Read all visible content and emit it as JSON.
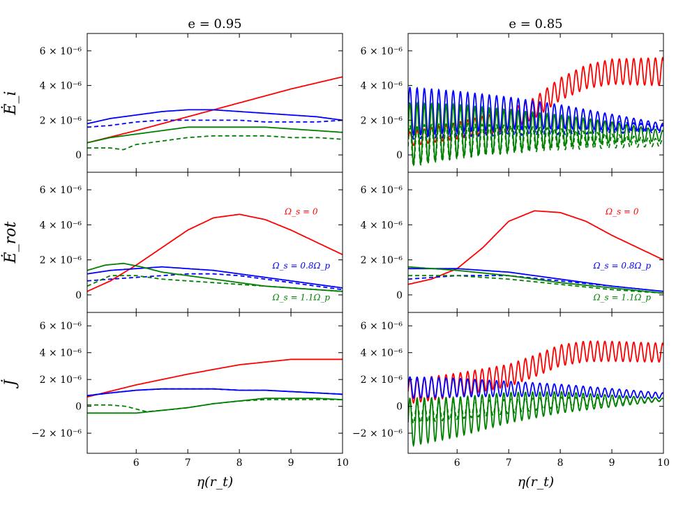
{
  "chart_data": {
    "type": "line",
    "columns": [
      {
        "title": "e = 0.95",
        "key": "e095"
      },
      {
        "title": "e = 0.85",
        "key": "e085"
      }
    ],
    "rows": [
      {
        "key": "Ei",
        "ylabel": "Ė_i",
        "ylim": [
          -1e-06,
          7e-06
        ],
        "yticks": [
          0,
          2e-06,
          4e-06,
          6e-06
        ]
      },
      {
        "key": "Erot",
        "ylabel": "Ė_rot",
        "ylim": [
          -1e-06,
          7e-06
        ],
        "yticks": [
          0,
          2e-06,
          4e-06,
          6e-06
        ]
      },
      {
        "key": "J",
        "ylabel": "J̇",
        "ylim": [
          -3.5e-06,
          7e-06
        ],
        "yticks": [
          -2e-06,
          0,
          2e-06,
          4e-06,
          6e-06
        ]
      }
    ],
    "ytick_labels": {
      "-0.000002": "−2 × 10⁻⁶",
      "0": "0",
      "0.000002": "2 × 10⁻⁶",
      "0.000004": "4 × 10⁻⁶",
      "0.000006": "6 × 10⁻⁶"
    },
    "xlim": [
      5.05,
      10
    ],
    "xticks": [
      6,
      7,
      8,
      9,
      10
    ],
    "xlabel": "η(r_t)",
    "series_styles": [
      {
        "key": "red",
        "label": "Ω_s = 0",
        "color": "#ff0000"
      },
      {
        "key": "blue",
        "label": "Ω_s = 0.8Ω_p",
        "color": "#0000ff"
      },
      {
        "key": "green",
        "label": "Ω_s = 1.1Ω_p",
        "color": "#008000"
      }
    ],
    "panels": {
      "Ei_e095": {
        "curves": [
          {
            "color": "red",
            "dashed": false,
            "x": [
              5.05,
              6,
              7,
              8,
              9,
              10
            ],
            "y": [
              7e-07,
              1.4e-06,
              2.2e-06,
              3e-06,
              3.8e-06,
              4.5e-06
            ]
          },
          {
            "color": "blue",
            "dashed": false,
            "x": [
              5.05,
              5.5,
              6,
              6.5,
              7,
              7.5,
              8,
              8.5,
              9,
              9.5,
              10
            ],
            "y": [
              1.8e-06,
              2.1e-06,
              2.3e-06,
              2.5e-06,
              2.6e-06,
              2.6e-06,
              2.5e-06,
              2.4e-06,
              2.3e-06,
              2.2e-06,
              2e-06
            ]
          },
          {
            "color": "blue",
            "dashed": true,
            "x": [
              5.05,
              5.5,
              6,
              6.5,
              7,
              7.5,
              8,
              8.5,
              9,
              9.5,
              10
            ],
            "y": [
              1.6e-06,
              1.7e-06,
              1.9e-06,
              2e-06,
              2e-06,
              2e-06,
              2e-06,
              1.9e-06,
              1.9e-06,
              1.9e-06,
              2e-06
            ]
          },
          {
            "color": "green",
            "dashed": false,
            "x": [
              5.05,
              5.5,
              6,
              6.5,
              7,
              7.5,
              8,
              8.5,
              9,
              9.5,
              10
            ],
            "y": [
              7e-07,
              1e-06,
              1.2e-06,
              1.4e-06,
              1.6e-06,
              1.6e-06,
              1.6e-06,
              1.6e-06,
              1.5e-06,
              1.4e-06,
              1.3e-06
            ]
          },
          {
            "color": "green",
            "dashed": true,
            "x": [
              5.05,
              5.5,
              5.75,
              6,
              6.5,
              7,
              7.5,
              8,
              8.5,
              9,
              9.5,
              10
            ],
            "y": [
              4e-07,
              4e-07,
              3e-07,
              6e-07,
              8e-07,
              1e-06,
              1.1e-06,
              1.1e-06,
              1.1e-06,
              1e-06,
              1e-06,
              9e-07
            ]
          }
        ]
      },
      "Ei_e085": {
        "curves": [
          {
            "color": "red",
            "dashed": false,
            "x": [
              5.05,
              6,
              7,
              7.5,
              8,
              8.5,
              9,
              10
            ],
            "y": [
              9e-07,
              1.4e-06,
              2e-06,
              2.7e-06,
              3.8e-06,
              4.5e-06,
              4.8e-06,
              4.8e-06
            ],
            "osc": {
              "period": 0.14,
              "amp_start": 4e-07,
              "amp_end": 8e-07
            }
          },
          {
            "color": "blue",
            "dashed": false,
            "x": [
              5.05,
              6,
              7,
              8,
              9,
              10
            ],
            "y": [
              2.5e-06,
              2.5e-06,
              2.4e-06,
              2.2e-06,
              1.9e-06,
              1.6e-06
            ],
            "osc": {
              "period": 0.14,
              "amp_start": 1.4e-06,
              "amp_end": 2e-07
            }
          },
          {
            "color": "blue",
            "dashed": true,
            "x": [
              5.05,
              6,
              7,
              8,
              9,
              10
            ],
            "y": [
              1.9e-06,
              1.9e-06,
              1.8e-06,
              1.7e-06,
              1.6e-06,
              1.5e-06
            ],
            "osc": {
              "period": 0.14,
              "amp_start": 1e-06,
              "amp_end": 2e-07
            }
          },
          {
            "color": "green",
            "dashed": false,
            "x": [
              5.05,
              6,
              7,
              8,
              9,
              10
            ],
            "y": [
              1.2e-06,
              1.4e-06,
              1.4e-06,
              1.4e-06,
              1.3e-06,
              1.1e-06
            ],
            "osc": {
              "period": 0.14,
              "amp_start": 1.8e-06,
              "amp_end": 3e-07
            }
          },
          {
            "color": "green",
            "dashed": true,
            "x": [
              5.05,
              6,
              7,
              8,
              9,
              10
            ],
            "y": [
              5e-07,
              8e-07,
              9e-07,
              9e-07,
              8e-07,
              7e-07
            ],
            "osc": {
              "period": 0.14,
              "amp_start": 1.2e-06,
              "amp_end": 2e-07
            }
          }
        ]
      },
      "Erot_e095": {
        "curves": [
          {
            "color": "red",
            "dashed": false,
            "x": [
              5.05,
              5.5,
              6,
              6.5,
              7,
              7.5,
              8,
              8.5,
              9,
              9.5,
              10
            ],
            "y": [
              2e-07,
              8e-07,
              1.7e-06,
              2.7e-06,
              3.7e-06,
              4.4e-06,
              4.6e-06,
              4.3e-06,
              3.7e-06,
              3e-06,
              2.3e-06
            ]
          },
          {
            "color": "blue",
            "dashed": false,
            "x": [
              5.05,
              5.5,
              6,
              6.5,
              7,
              7.5,
              8,
              8.5,
              9,
              9.5,
              10
            ],
            "y": [
              1.2e-06,
              1.4e-06,
              1.5e-06,
              1.6e-06,
              1.5e-06,
              1.4e-06,
              1.2e-06,
              1e-06,
              8e-07,
              6e-07,
              4e-07
            ]
          },
          {
            "color": "blue",
            "dashed": true,
            "x": [
              5.05,
              5.5,
              6,
              6.5,
              7,
              7.5,
              8,
              8.5,
              9,
              9.5,
              10
            ],
            "y": [
              8e-07,
              9e-07,
              1e-06,
              1.1e-06,
              1.2e-06,
              1.2e-06,
              1.1e-06,
              9e-07,
              7e-07,
              5e-07,
              3e-07
            ]
          },
          {
            "color": "green",
            "dashed": false,
            "x": [
              5.05,
              5.4,
              5.75,
              6.1,
              6.5,
              7,
              7.5,
              8,
              8.5,
              9,
              9.5,
              10
            ],
            "y": [
              1.4e-06,
              1.7e-06,
              1.8e-06,
              1.6e-06,
              1.3e-06,
              1.1e-06,
              9e-07,
              7e-07,
              5e-07,
              4e-07,
              3e-07,
              2e-07
            ]
          },
          {
            "color": "green",
            "dashed": true,
            "x": [
              5.05,
              5.5,
              6,
              6.5,
              7,
              7.5,
              8,
              8.5,
              9,
              9.5,
              10
            ],
            "y": [
              5e-07,
              1.1e-06,
              1.1e-06,
              9e-07,
              8e-07,
              7e-07,
              6e-07,
              5e-07,
              4e-07,
              3e-07,
              2e-07
            ]
          }
        ]
      },
      "Erot_e085": {
        "curves": [
          {
            "color": "red",
            "dashed": false,
            "x": [
              5.05,
              5.5,
              6,
              6.5,
              7,
              7.5,
              8,
              8.5,
              9,
              9.5,
              10
            ],
            "y": [
              6e-07,
              9e-07,
              1.5e-06,
              2.7e-06,
              4.2e-06,
              4.8e-06,
              4.7e-06,
              4.2e-06,
              3.4e-06,
              2.7e-06,
              2e-06
            ]
          },
          {
            "color": "blue",
            "dashed": false,
            "x": [
              5.05,
              6,
              7,
              8,
              9,
              10
            ],
            "y": [
              1.5e-06,
              1.5e-06,
              1.3e-06,
              9e-07,
              5e-07,
              2e-07
            ]
          },
          {
            "color": "blue",
            "dashed": true,
            "x": [
              5.05,
              6,
              7,
              8,
              9,
              10
            ],
            "y": [
              9e-07,
              1.1e-06,
              1.1e-06,
              8e-07,
              5e-07,
              2e-07
            ]
          },
          {
            "color": "green",
            "dashed": false,
            "x": [
              5.05,
              6,
              7,
              8,
              9,
              10
            ],
            "y": [
              1.6e-06,
              1.4e-06,
              1.1e-06,
              7e-07,
              4e-07,
              1e-07
            ]
          },
          {
            "color": "green",
            "dashed": true,
            "x": [
              5.05,
              6,
              7,
              8,
              9,
              10
            ],
            "y": [
              1.1e-06,
              1.1e-06,
              9e-07,
              6e-07,
              3e-07,
              1e-07
            ]
          }
        ]
      },
      "J_e095": {
        "curves": [
          {
            "color": "red",
            "dashed": false,
            "x": [
              5.05,
              6,
              7,
              8,
              8.5,
              9,
              9.5,
              10
            ],
            "y": [
              7e-07,
              1.6e-06,
              2.4e-06,
              3.1e-06,
              3.3e-06,
              3.5e-06,
              3.5e-06,
              3.5e-06
            ]
          },
          {
            "color": "blue",
            "dashed": false,
            "x": [
              5.05,
              5.5,
              6,
              6.5,
              7,
              7.5,
              8,
              8.5,
              9,
              9.5,
              10
            ],
            "y": [
              8e-07,
              1e-06,
              1.2e-06,
              1.3e-06,
              1.3e-06,
              1.3e-06,
              1.2e-06,
              1.2e-06,
              1.1e-06,
              1e-06,
              9e-07
            ]
          },
          {
            "color": "blue",
            "dashed": true,
            "x": [
              5.05,
              5.5,
              6,
              6.5,
              7,
              7.5,
              8,
              8.5,
              9,
              9.5,
              10
            ],
            "y": [
              8e-07,
              1e-06,
              1.2e-06,
              1.3e-06,
              1.3e-06,
              1.3e-06,
              1.2e-06,
              1.2e-06,
              1.1e-06,
              1e-06,
              9e-07
            ]
          },
          {
            "color": "green",
            "dashed": false,
            "x": [
              5.05,
              5.5,
              6,
              6.5,
              7,
              7.5,
              8,
              8.5,
              9,
              9.5,
              10
            ],
            "y": [
              -5e-07,
              -5e-07,
              -5e-07,
              -3e-07,
              -1e-07,
              2e-07,
              4e-07,
              6e-07,
              6e-07,
              6e-07,
              5e-07
            ]
          },
          {
            "color": "green",
            "dashed": true,
            "x": [
              5.05,
              5.5,
              5.8,
              6.2,
              6.5,
              7,
              7.5,
              8,
              8.5,
              9,
              9.5,
              10
            ],
            "y": [
              1e-07,
              1e-07,
              0,
              -4e-07,
              -3e-07,
              -1e-07,
              2e-07,
              4e-07,
              5e-07,
              5e-07,
              5e-07,
              5e-07
            ]
          }
        ]
      },
      "J_e085": {
        "curves": [
          {
            "color": "red",
            "dashed": false,
            "x": [
              5.05,
              6,
              7,
              7.5,
              8,
              8.5,
              9,
              10
            ],
            "y": [
              1.1e-06,
              1.6e-06,
              2.3e-06,
              3e-06,
              3.8e-06,
              4.1e-06,
              4.1e-06,
              4e-06
            ],
            "osc": {
              "period": 0.14,
              "amp_start": 9e-07,
              "amp_end": 7e-07
            }
          },
          {
            "color": "blue",
            "dashed": false,
            "x": [
              5.05,
              6,
              7,
              8,
              9,
              10
            ],
            "y": [
              1.4e-06,
              1.4e-06,
              1.3e-06,
              1.2e-06,
              1e-06,
              8e-07
            ],
            "osc": {
              "period": 0.14,
              "amp_start": 8e-07,
              "amp_end": 2e-07
            }
          },
          {
            "color": "green",
            "dashed": false,
            "x": [
              5.05,
              6,
              7,
              8,
              9,
              10
            ],
            "y": [
              -1.2e-06,
              -8e-07,
              -1e-07,
              3e-07,
              4e-07,
              5e-07
            ],
            "osc": {
              "period": 0.14,
              "amp_start": 1.8e-06,
              "amp_end": 1e-07
            }
          },
          {
            "color": "green",
            "dashed": true,
            "x": [
              5.05,
              6,
              7,
              8,
              9,
              10
            ],
            "y": [
              -5e-07,
              -3e-07,
              0,
              3e-07,
              4e-07,
              5e-07
            ],
            "osc": {
              "period": 0.14,
              "amp_start": 8e-07,
              "amp_end": 1e-07
            }
          }
        ]
      }
    },
    "annotations": [
      {
        "panel": "Erot_e095",
        "series": "red",
        "x": 9.2,
        "y": 4.6e-06
      },
      {
        "panel": "Erot_e095",
        "series": "blue",
        "x": 9.2,
        "y": 1.5e-06
      },
      {
        "panel": "Erot_e095",
        "series": "green",
        "x": 9.2,
        "y": -3e-07
      },
      {
        "panel": "Erot_e085",
        "series": "red",
        "x": 9.2,
        "y": 4.6e-06
      },
      {
        "panel": "Erot_e085",
        "series": "blue",
        "x": 9.2,
        "y": 1.5e-06
      },
      {
        "panel": "Erot_e085",
        "series": "green",
        "x": 9.2,
        "y": -3e-07
      }
    ]
  }
}
